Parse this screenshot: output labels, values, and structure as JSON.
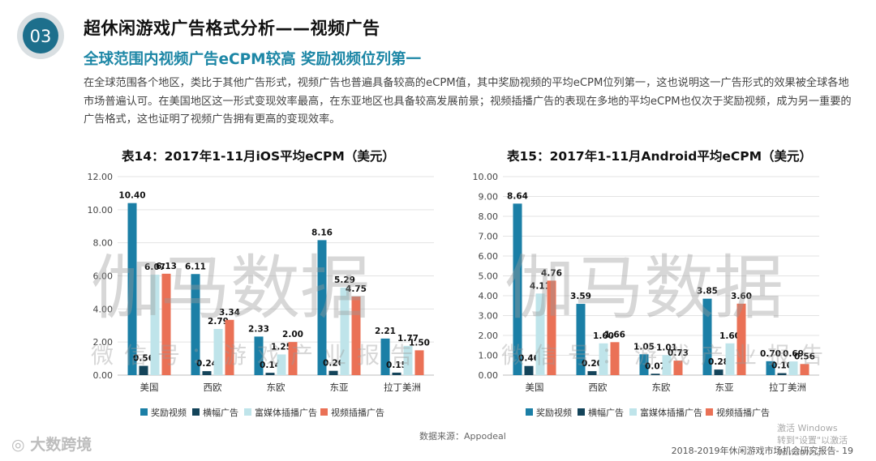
{
  "header": {
    "badge_number": "03",
    "title": "超休闲游戏广告格式分析——视频广告",
    "subtitle": "全球范围内视频广告eCPM较高  奖励视频位列第一",
    "paragraph": "在全球范围各个地区，类比于其他广告形式，视频广告也普遍具备较高的eCPM值，其中奖励视频的平均eCPM位列第一，这也说明这一广告形式的效果被全球各地市场普遍认可。在美国地区这一形式变现效率最高，在东亚地区也具备较高发展前景；视频插播广告的表现在多地的平均eCPM也仅次于奖励视频，成为另一重要的广告格式，这也证明了视频广告拥有更高的变现效率。"
  },
  "colors": {
    "accent": "#1d87a6",
    "series": [
      "#1b7fa6",
      "#14445a",
      "#bfe4ea",
      "#ea7156"
    ]
  },
  "chart_data": [
    {
      "type": "bar",
      "title": "表14：2017年1-11月iOS平均eCPM（美元）",
      "categories": [
        "美国",
        "西欧",
        "东欧",
        "东亚",
        "拉丁美洲"
      ],
      "series": [
        {
          "name": "奖励视频",
          "values": [
            10.4,
            6.11,
            2.33,
            8.16,
            2.21
          ]
        },
        {
          "name": "横幅广告",
          "values": [
            0.56,
            0.24,
            0.14,
            0.26,
            0.15
          ]
        },
        {
          "name": "富媒体插播广告",
          "values": [
            6.07,
            2.79,
            1.25,
            5.29,
            1.77
          ]
        },
        {
          "name": "视频插播广告",
          "values": [
            6.13,
            3.34,
            2.0,
            4.75,
            1.5
          ]
        }
      ],
      "ylim": [
        0,
        12
      ],
      "yticks": [
        "0.00",
        "2.00",
        "4.00",
        "6.00",
        "8.00",
        "10.00",
        "12.00"
      ],
      "xlabel": "",
      "ylabel": "",
      "legend": "bottom"
    },
    {
      "type": "bar",
      "title": "表15：2017年1-11月Android平均eCPM（美元）",
      "categories": [
        "美国",
        "西欧",
        "东欧",
        "东亚",
        "拉丁美洲"
      ],
      "series": [
        {
          "name": "奖励视频",
          "values": [
            8.64,
            3.59,
            1.05,
            3.85,
            0.7
          ]
        },
        {
          "name": "横幅广告",
          "values": [
            0.46,
            0.2,
            0.07,
            0.28,
            0.1
          ]
        },
        {
          "name": "富媒体插播广告",
          "values": [
            4.11,
            1.6,
            1.01,
            1.6,
            0.69
          ]
        },
        {
          "name": "视频插播广告",
          "values": [
            4.76,
            1.66,
            0.73,
            3.6,
            0.56
          ]
        }
      ],
      "ylim": [
        0,
        10
      ],
      "yticks": [
        "0.00",
        "1.00",
        "2.00",
        "3.00",
        "4.00",
        "5.00",
        "6.00",
        "7.00",
        "8.00",
        "9.00",
        "10.00"
      ],
      "xlabel": "",
      "ylabel": "",
      "legend": "bottom"
    }
  ],
  "source": "数据来源：Appodeal",
  "footer": {
    "page_label": "2018-2019年休闲游戏市场机会研究报告- 19",
    "logo_text": "大数跨境",
    "windows_line1": "激活 Windows",
    "windows_line2": "转到\"设置\"以激活 Windows。"
  },
  "watermark": {
    "main": "伽马数据",
    "sub": "微信号：游戏产业报告"
  }
}
